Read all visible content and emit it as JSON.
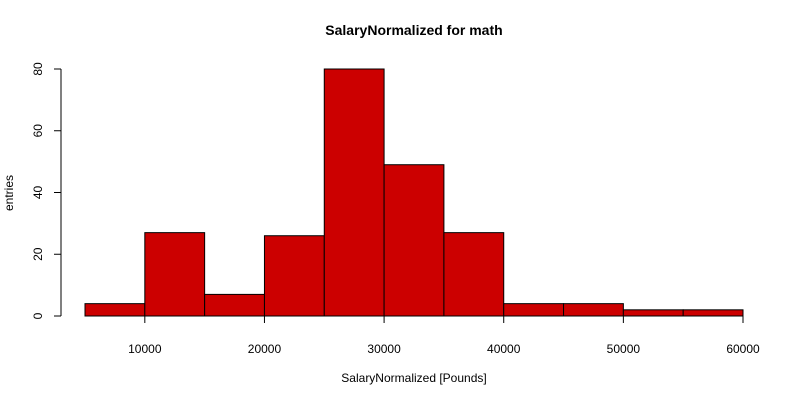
{
  "chart_data": {
    "type": "bar",
    "title": "SalaryNormalized for math",
    "xlabel": "SalaryNormalized [Pounds]",
    "ylabel": "entries",
    "bin_edges": [
      5000,
      10000,
      15000,
      20000,
      25000,
      30000,
      35000,
      40000,
      45000,
      50000,
      55000,
      60000
    ],
    "values": [
      4,
      27,
      7,
      26,
      80,
      49,
      27,
      4,
      4,
      2,
      2
    ],
    "xlim": [
      5000,
      60000
    ],
    "ylim": [
      0,
      80
    ],
    "x_ticks": [
      10000,
      20000,
      30000,
      40000,
      50000,
      60000
    ],
    "y_ticks": [
      0,
      20,
      40,
      60,
      80
    ],
    "bar_color": "#CC0000",
    "grid": false,
    "legend": "none"
  }
}
